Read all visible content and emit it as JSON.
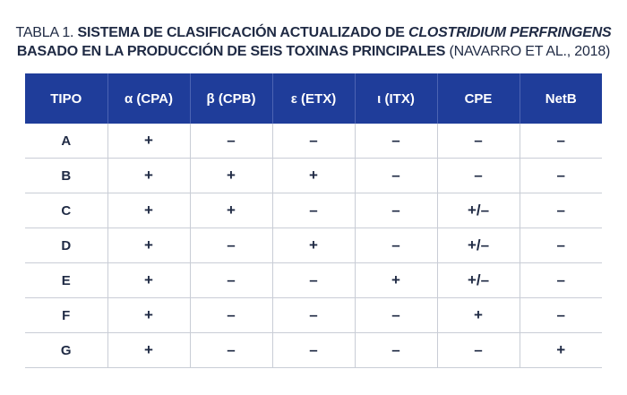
{
  "caption": {
    "prefix": "TABLA 1. ",
    "bold_part": "SISTEMA DE CLASIFICACIÓN ACTUALIZADO DE ",
    "italic_part": "CLOSTRIDIUM PERFRINGENS",
    "line2_bold": "BASADO EN LA PRODUCCIÓN DE SEIS TOXINAS PRINCIPALES",
    "citation": " (NAVARRO ET AL., 2018)"
  },
  "colors": {
    "header_bg": "#1f3d9a",
    "text": "#1f2a44",
    "grid": "#c9cdd6"
  },
  "table": {
    "headers": [
      "TIPO",
      "α (CPA)",
      "β (CPB)",
      "ε (ETX)",
      "ι (ITX)",
      "CPE",
      "NetB"
    ],
    "rows": [
      [
        "A",
        "+",
        "–",
        "–",
        "–",
        "–",
        "–"
      ],
      [
        "B",
        "+",
        "+",
        "+",
        "–",
        "–",
        "–"
      ],
      [
        "C",
        "+",
        "+",
        "–",
        "–",
        "+/–",
        "–"
      ],
      [
        "D",
        "+",
        "–",
        "+",
        "–",
        "+/–",
        "–"
      ],
      [
        "E",
        "+",
        "–",
        "–",
        "+",
        "+/–",
        "–"
      ],
      [
        "F",
        "+",
        "–",
        "–",
        "–",
        "+",
        "–"
      ],
      [
        "G",
        "+",
        "–",
        "–",
        "–",
        "–",
        "+"
      ]
    ]
  }
}
